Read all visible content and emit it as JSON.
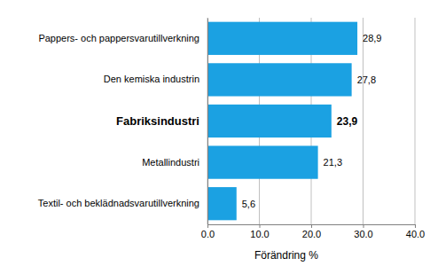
{
  "chart_data": {
    "type": "bar",
    "orientation": "horizontal",
    "categories": [
      "Pappers- och pappersvarutillverkning",
      "Den kemiska industrin",
      "Fabriksindustri",
      "Metallindustri",
      "Textil- och beklädnadsvarutillverkning"
    ],
    "values": [
      28.9,
      27.8,
      23.9,
      21.3,
      5.6
    ],
    "value_labels": [
      "28,9",
      "27,8",
      "23,9",
      "21,3",
      "5,6"
    ],
    "data_labels": true,
    "color": "#1ba1e2",
    "x_label": "Förändring %",
    "xlim": [
      0,
      40
    ],
    "xticks": [
      {
        "value": 0,
        "label": "0.0"
      },
      {
        "value": 10,
        "label": "10.0"
      },
      {
        "value": 20,
        "label": "20.0"
      },
      {
        "value": 30,
        "label": "30.0"
      },
      {
        "value": 40,
        "label": "40.0"
      }
    ],
    "grid": true
  }
}
